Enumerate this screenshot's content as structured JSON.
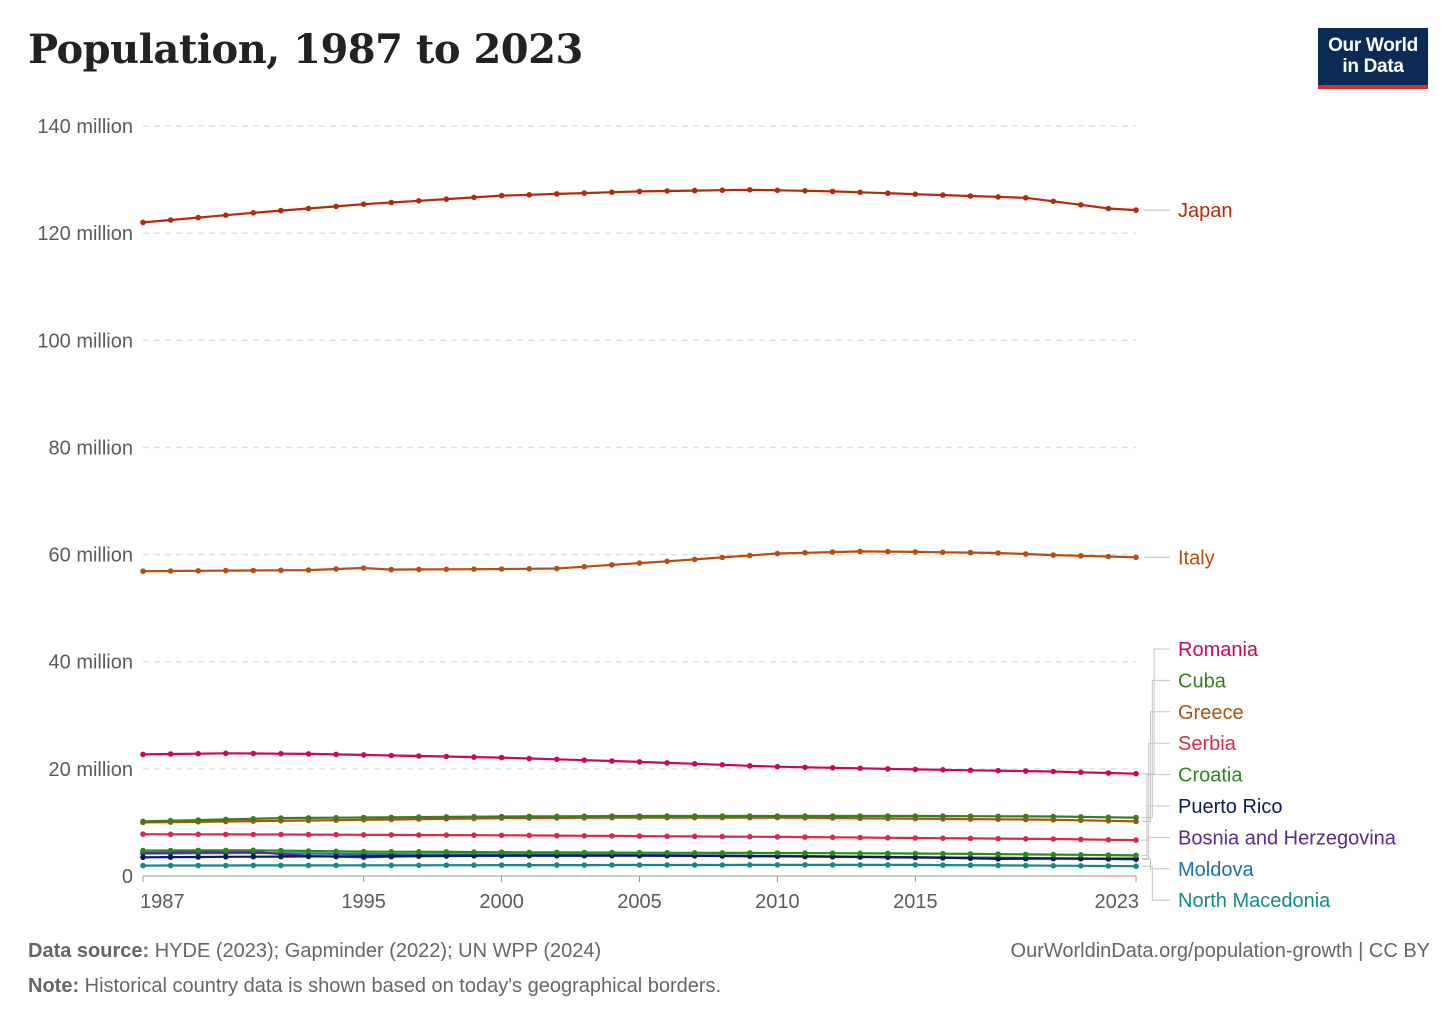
{
  "title": "Population, 1987 to 2023",
  "logo": {
    "line1": "Our World",
    "line2": "in Data",
    "bg": "#0b2a55",
    "accent": "#d62f2f"
  },
  "footer": {
    "source_label": "Data source:",
    "source_text": " HYDE (2023); Gapminder (2022); UN WPP (2024)",
    "note_label": "Note:",
    "note_text": " Historical country data is shown based on today's geographical borders.",
    "url": "OurWorldinData.org/population-growth | CC BY"
  },
  "chart_data": {
    "type": "line",
    "ylim": [
      0,
      140000000
    ],
    "xlim": [
      1987,
      2023
    ],
    "grid": true,
    "y_ticks": [
      {
        "value": 0,
        "label": "0"
      },
      {
        "value": 20000000,
        "label": "20 million"
      },
      {
        "value": 40000000,
        "label": "40 million"
      },
      {
        "value": 60000000,
        "label": "60 million"
      },
      {
        "value": 80000000,
        "label": "80 million"
      },
      {
        "value": 100000000,
        "label": "100 million"
      },
      {
        "value": 120000000,
        "label": "120 million"
      },
      {
        "value": 140000000,
        "label": "140 million"
      }
    ],
    "x_ticks": [
      {
        "value": 1987,
        "label": "1987"
      },
      {
        "value": 1995,
        "label": "1995"
      },
      {
        "value": 2000,
        "label": "2000"
      },
      {
        "value": 2005,
        "label": "2005"
      },
      {
        "value": 2010,
        "label": "2010"
      },
      {
        "value": 2015,
        "label": "2015"
      },
      {
        "value": 2023,
        "label": "2023"
      }
    ],
    "legend_placement": "right",
    "series": [
      {
        "name": "Japan",
        "color": "#b12a0c",
        "points": [
          [
            1987,
            122000000
          ],
          [
            1991,
            123800000
          ],
          [
            1995,
            125400000
          ],
          [
            2000,
            127000000
          ],
          [
            2005,
            127800000
          ],
          [
            2009,
            128100000
          ],
          [
            2012,
            127800000
          ],
          [
            2016,
            127100000
          ],
          [
            2019,
            126600000
          ],
          [
            2021,
            125300000
          ],
          [
            2022,
            124600000
          ],
          [
            2023,
            124300000
          ]
        ]
      },
      {
        "name": "Italy",
        "color": "#b84e0d",
        "points": [
          [
            1987,
            56900000
          ],
          [
            1993,
            57100000
          ],
          [
            1995,
            57500000
          ],
          [
            1996,
            57200000
          ],
          [
            2000,
            57300000
          ],
          [
            2002,
            57400000
          ],
          [
            2005,
            58400000
          ],
          [
            2007,
            59100000
          ],
          [
            2010,
            60200000
          ],
          [
            2013,
            60600000
          ],
          [
            2015,
            60500000
          ],
          [
            2018,
            60300000
          ],
          [
            2020,
            59900000
          ],
          [
            2023,
            59500000
          ]
        ]
      },
      {
        "name": "Romania",
        "color": "#c8085a",
        "points": [
          [
            1987,
            22700000
          ],
          [
            1990,
            22900000
          ],
          [
            1993,
            22800000
          ],
          [
            1996,
            22500000
          ],
          [
            2000,
            22100000
          ],
          [
            2005,
            21300000
          ],
          [
            2010,
            20400000
          ],
          [
            2015,
            19900000
          ],
          [
            2020,
            19500000
          ],
          [
            2023,
            19100000
          ]
        ]
      },
      {
        "name": "Cuba",
        "color": "#3a7d1e",
        "points": [
          [
            1987,
            10200000
          ],
          [
            1992,
            10800000
          ],
          [
            2000,
            11100000
          ],
          [
            2005,
            11200000
          ],
          [
            2010,
            11200000
          ],
          [
            2015,
            11200000
          ],
          [
            2020,
            11100000
          ],
          [
            2023,
            10900000
          ]
        ]
      },
      {
        "name": "Greece",
        "color": "#a8540a",
        "points": [
          [
            1987,
            10000000
          ],
          [
            1992,
            10300000
          ],
          [
            2000,
            10800000
          ],
          [
            2005,
            10900000
          ],
          [
            2010,
            10900000
          ],
          [
            2015,
            10700000
          ],
          [
            2020,
            10500000
          ],
          [
            2023,
            10200000
          ]
        ]
      },
      {
        "name": "Serbia",
        "color": "#d42c47",
        "points": [
          [
            1987,
            7800000
          ],
          [
            1995,
            7700000
          ],
          [
            2000,
            7600000
          ],
          [
            2005,
            7450000
          ],
          [
            2010,
            7300000
          ],
          [
            2015,
            7100000
          ],
          [
            2020,
            6900000
          ],
          [
            2023,
            6700000
          ]
        ]
      },
      {
        "name": "Croatia",
        "color": "#2a8a1a",
        "points": [
          [
            1987,
            4750000
          ],
          [
            1991,
            4800000
          ],
          [
            1995,
            4550000
          ],
          [
            2000,
            4450000
          ],
          [
            2005,
            4350000
          ],
          [
            2010,
            4300000
          ],
          [
            2015,
            4200000
          ],
          [
            2020,
            4000000
          ],
          [
            2023,
            3850000
          ]
        ]
      },
      {
        "name": "Puerto Rico",
        "color": "#0b1c5a",
        "points": [
          [
            1987,
            3500000
          ],
          [
            1991,
            3600000
          ],
          [
            1995,
            3700000
          ],
          [
            2000,
            3800000
          ],
          [
            2004,
            3820000
          ],
          [
            2008,
            3750000
          ],
          [
            2012,
            3600000
          ],
          [
            2016,
            3400000
          ],
          [
            2018,
            3200000
          ],
          [
            2020,
            3250000
          ],
          [
            2023,
            3250000
          ]
        ]
      },
      {
        "name": "Bosnia and Herzegovina",
        "color": "#5b2a8c",
        "points": [
          [
            1987,
            4300000
          ],
          [
            1991,
            4500000
          ],
          [
            1993,
            3700000
          ],
          [
            1995,
            3500000
          ],
          [
            1997,
            3700000
          ],
          [
            2000,
            3800000
          ],
          [
            2005,
            3800000
          ],
          [
            2010,
            3700000
          ],
          [
            2015,
            3500000
          ],
          [
            2020,
            3300000
          ],
          [
            2023,
            3200000
          ]
        ]
      },
      {
        "name": "Moldova",
        "color": "#1d6fb3",
        "points": [
          [
            1987,
            4200000
          ],
          [
            1991,
            4300000
          ],
          [
            1995,
            4100000
          ],
          [
            2000,
            4000000
          ],
          [
            2005,
            3950000
          ],
          [
            2010,
            3750000
          ],
          [
            2015,
            3500000
          ],
          [
            2020,
            3300000
          ],
          [
            2023,
            3100000
          ]
        ]
      },
      {
        "name": "North Macedonia",
        "color": "#138a8a",
        "points": [
          [
            1987,
            1950000
          ],
          [
            1995,
            1990000
          ],
          [
            2000,
            2030000
          ],
          [
            2005,
            2050000
          ],
          [
            2010,
            2070000
          ],
          [
            2015,
            2070000
          ],
          [
            2020,
            1930000
          ],
          [
            2023,
            1830000
          ]
        ]
      }
    ]
  }
}
